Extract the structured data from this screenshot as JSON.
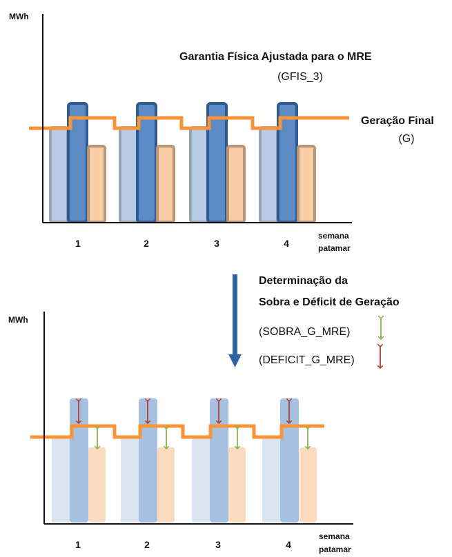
{
  "top_chart": {
    "y_axis_label": "MWh",
    "x_ticks": [
      "1",
      "2",
      "3",
      "4"
    ],
    "x_axis_label_1": "semana",
    "x_axis_label_2": "patamar",
    "annotation_gfis_title": "Garantia Física Ajustada para  o MRE",
    "annotation_gfis_code": "(GFIS_3)",
    "annotation_g_title": "Geração Final",
    "annotation_g_code": "(G)"
  },
  "transition": {
    "title_line1": "Determinação  da",
    "title_line2": "Sobra e Déficit de  Geração",
    "sobra_label": "(SOBRA_G_MRE)",
    "deficit_label": "(DEFICIT_G_MRE)"
  },
  "bottom_chart": {
    "y_axis_label": "MWh",
    "x_ticks": [
      "1",
      "2",
      "3",
      "4"
    ],
    "x_axis_label_1": "semana",
    "x_axis_label_2": "patamar"
  },
  "colors": {
    "light_blue": "#b7cce4",
    "light_blue_border": "#9aa3ad",
    "dark_blue": "#5b8ac4",
    "dark_blue_border": "#2f5a8f",
    "peach": "#fbcda6",
    "peach_border": "#b89478",
    "orange_line": "#f7943a",
    "arrow_blue": "#2f63a8",
    "arrow_green": "#8ab54a",
    "arrow_red": "#b33a3a"
  }
}
